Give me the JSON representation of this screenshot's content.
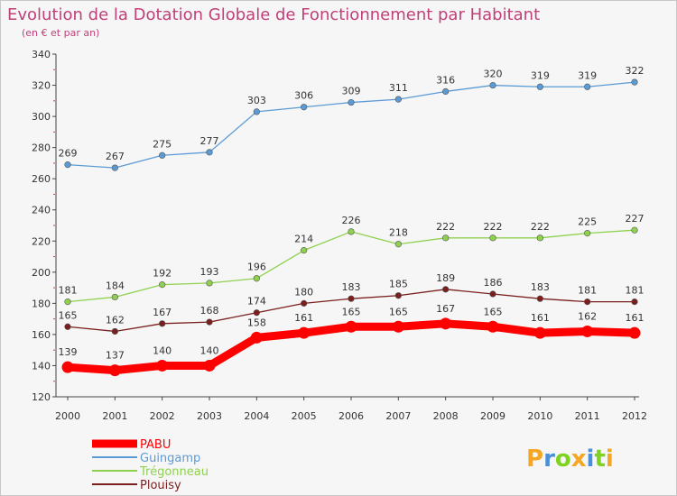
{
  "chart_data": {
    "type": "line",
    "title": "Evolution de la Dotation Globale de Fonctionnement par Habitant",
    "subtitle": "(en € et par an)",
    "xlabel": "",
    "ylabel": "",
    "x": [
      "2000",
      "2001",
      "2002",
      "2003",
      "2004",
      "2005",
      "2006",
      "2007",
      "2008",
      "2009",
      "2010",
      "2011",
      "2012"
    ],
    "ylim": [
      120,
      340
    ],
    "yticks": [
      120,
      140,
      160,
      180,
      200,
      220,
      240,
      260,
      280,
      300,
      320,
      340
    ],
    "grid": false,
    "legend_position": "bottom-left",
    "series": [
      {
        "name": "Guingamp",
        "color": "#5b9bd5",
        "values": [
          269,
          267,
          275,
          277,
          303,
          306,
          309,
          311,
          316,
          320,
          319,
          319,
          322
        ]
      },
      {
        "name": "Trégonneau",
        "color": "#8fd14f",
        "values": [
          181,
          184,
          192,
          193,
          196,
          214,
          226,
          218,
          222,
          222,
          222,
          225,
          227
        ]
      },
      {
        "name": "Plouisy",
        "color": "#7a1e1e",
        "values": [
          165,
          162,
          167,
          168,
          174,
          180,
          183,
          185,
          189,
          186,
          183,
          181,
          181
        ]
      },
      {
        "name": "PABU",
        "color": "#ff0000",
        "values": [
          139,
          137,
          140,
          140,
          158,
          161,
          165,
          165,
          167,
          165,
          161,
          162,
          161
        ]
      }
    ],
    "legend_order": [
      "PABU",
      "Guingamp",
      "Trégonneau",
      "Plouisy"
    ]
  },
  "branding": {
    "logo_text": "Proxiti"
  }
}
